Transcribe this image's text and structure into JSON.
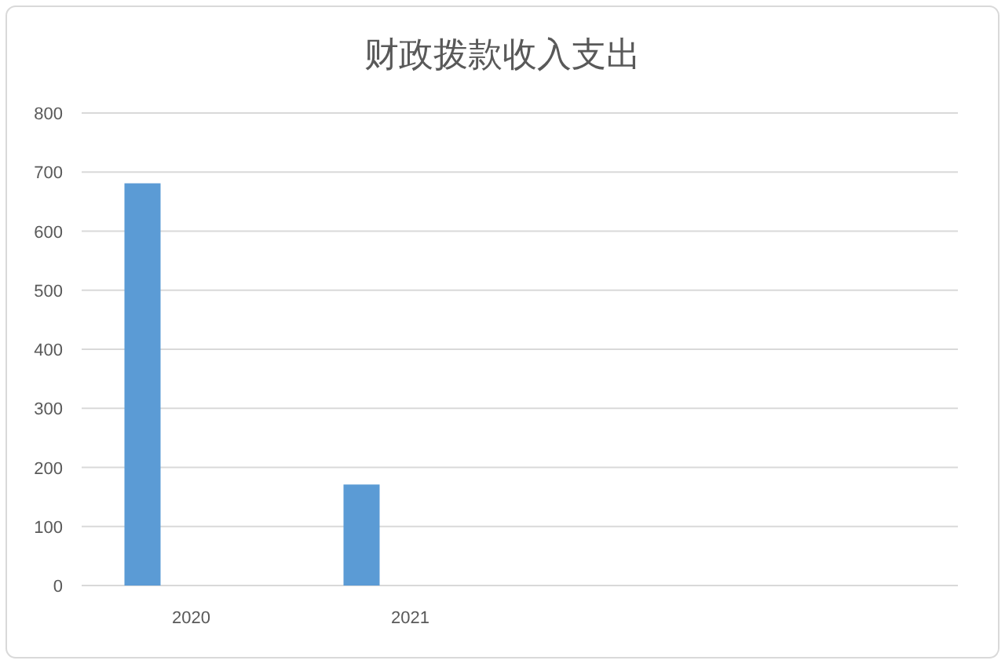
{
  "chart_data": {
    "type": "bar",
    "title": "财政拨款收入支出",
    "categories": [
      "2020",
      "2021",
      null,
      null
    ],
    "series": [
      {
        "color": "#5b9bd5",
        "values": [
          681,
          171,
          null,
          null
        ]
      }
    ],
    "ylim": [
      0,
      800
    ],
    "yticks": [
      0,
      100,
      200,
      300,
      400,
      500,
      600,
      700,
      800
    ],
    "grid": "y"
  }
}
